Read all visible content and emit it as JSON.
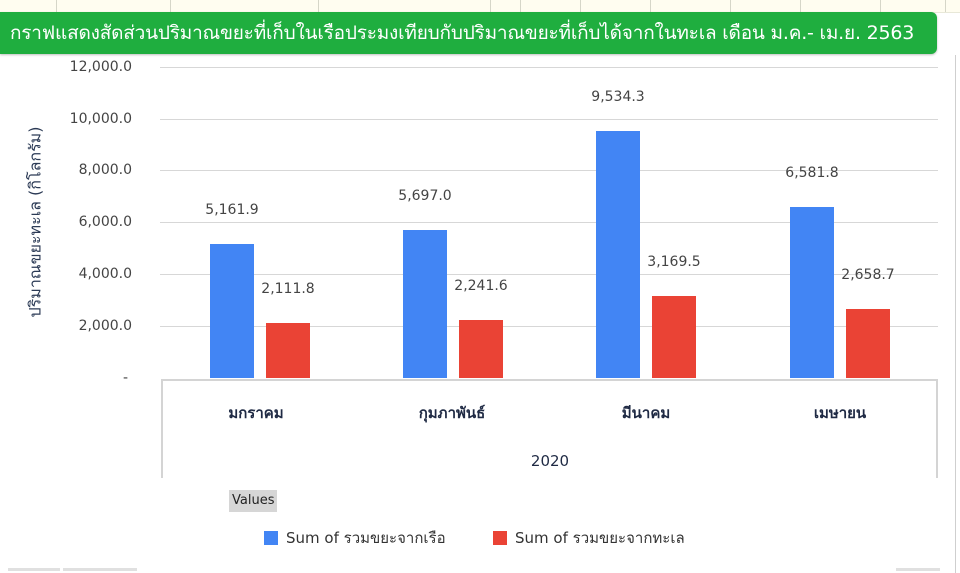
{
  "title": "กราฟแสดงสัดส่วนปริมาณขยะที่เก็บในเรือประมงเทียบกับปริมาณขยะที่เก็บได้จากในทะเล เดือน ม.ค.- เม.ย. 2563",
  "colors": {
    "banner": "#1fae3f",
    "series_boat": "#4285f4",
    "series_sea": "#ea4335"
  },
  "y_axis": {
    "title": "ปริมาณขยะทะเล (กิโลกรัม)",
    "ticks": [
      "12,000.0",
      "10,000.0",
      "8,000.0",
      "6,000.0",
      "4,000.0",
      "2,000.0",
      "-"
    ]
  },
  "x_axis": {
    "categories": [
      "มกราคม",
      "กุมภาพันธ์",
      "มีนาคม",
      "เมษายน"
    ],
    "group_label": "2020"
  },
  "legend": {
    "header": "Values",
    "items": [
      "Sum of รวมขยะจากเรือ",
      "Sum of รวมขยะจากทะเล"
    ]
  },
  "data_labels": {
    "boat": [
      "5,161.9",
      "5,697.0",
      "9,534.3",
      "6,581.8"
    ],
    "sea": [
      "2,111.8",
      "2,241.6",
      "3,169.5",
      "2,658.7"
    ]
  },
  "chart_data": {
    "type": "bar",
    "title": "กราฟแสดงสัดส่วนปริมาณขยะที่เก็บในเรือประมงเทียบกับปริมาณขยะที่เก็บได้จากในทะเล เดือน ม.ค.- เม.ย. 2563",
    "categories": [
      "มกราคม",
      "กุมภาพันธ์",
      "มีนาคม",
      "เมษายน"
    ],
    "group": "2020",
    "series": [
      {
        "name": "Sum of รวมขยะจากเรือ",
        "color": "#4285f4",
        "values": [
          5161.9,
          5697.0,
          9534.3,
          6581.8
        ]
      },
      {
        "name": "Sum of รวมขยะจากทะเล",
        "color": "#ea4335",
        "values": [
          2111.8,
          2241.6,
          3169.5,
          2658.7
        ]
      }
    ],
    "xlabel": "2020",
    "ylabel": "ปริมาณขยะทะเล (กิโลกรัม)",
    "ylim": [
      0,
      12000
    ],
    "yticks": [
      0,
      2000,
      4000,
      6000,
      8000,
      10000,
      12000
    ],
    "grid": true,
    "legend_position": "bottom",
    "data_labels": true
  }
}
